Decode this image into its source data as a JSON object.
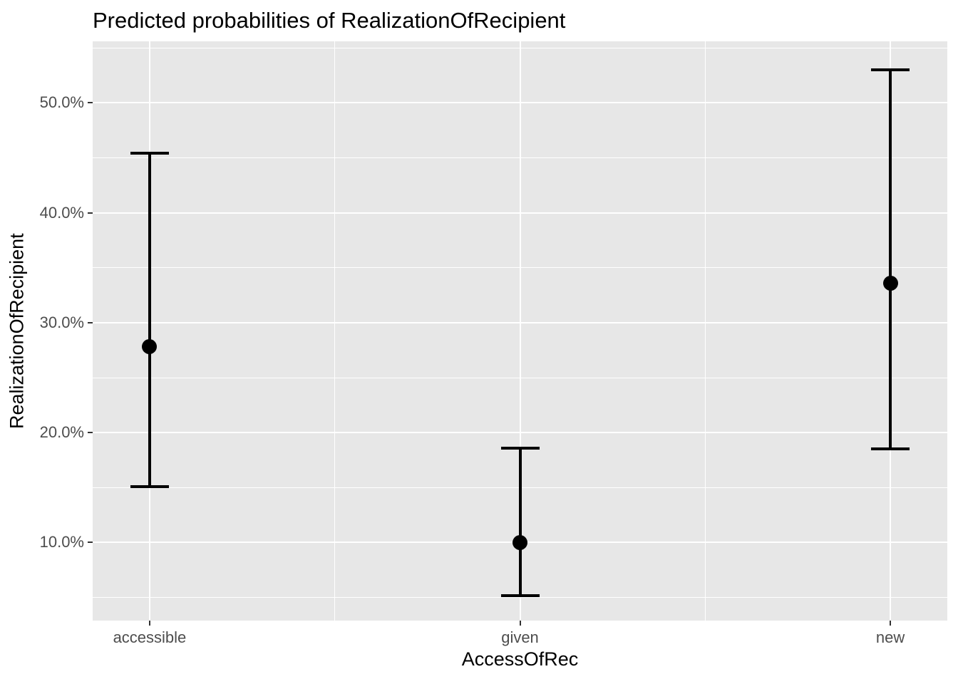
{
  "chart_data": {
    "type": "scatter",
    "variant": "point estimates with vertical error bars (ggplot2-style effects plot)",
    "title": "Predicted probabilities of RealizationOfRecipient",
    "xlabel": "AccessOfRec",
    "ylabel": "RealizationOfRecipient",
    "categories": [
      "accessible",
      "given",
      "new"
    ],
    "series": [
      {
        "name": "Predicted probability",
        "unit": "%",
        "values": [
          27.8,
          10.0,
          33.6
        ],
        "ci_low": [
          15.1,
          5.2,
          18.5
        ],
        "ci_high": [
          45.4,
          18.6,
          53.0
        ]
      }
    ],
    "y_axis": {
      "tick_values": [
        10,
        20,
        30,
        40,
        50
      ],
      "tick_labels": [
        "10.0%",
        "20.0%",
        "30.0%",
        "40.0%",
        "50.0%"
      ],
      "minor_tick_values": [
        5,
        15,
        25,
        35,
        45,
        55
      ],
      "range": [
        2.9,
        55.6
      ]
    },
    "x_axis": {
      "tick_labels": [
        "accessible",
        "given",
        "new"
      ]
    },
    "grid": "white major and minor gridlines on grey panel, horizontal minors at 5% steps, vertical minors midway between categories",
    "legend": "none",
    "colors": {
      "figure_background": "#ffffff",
      "panel_background": "#e7e7e7",
      "gridline": "#ffffff",
      "point_and_errorbar": "#000000",
      "tick_text": "#4d4d4d",
      "axis_title_text": "#000000",
      "title_text": "#000000",
      "tick_mark": "#333333"
    }
  }
}
